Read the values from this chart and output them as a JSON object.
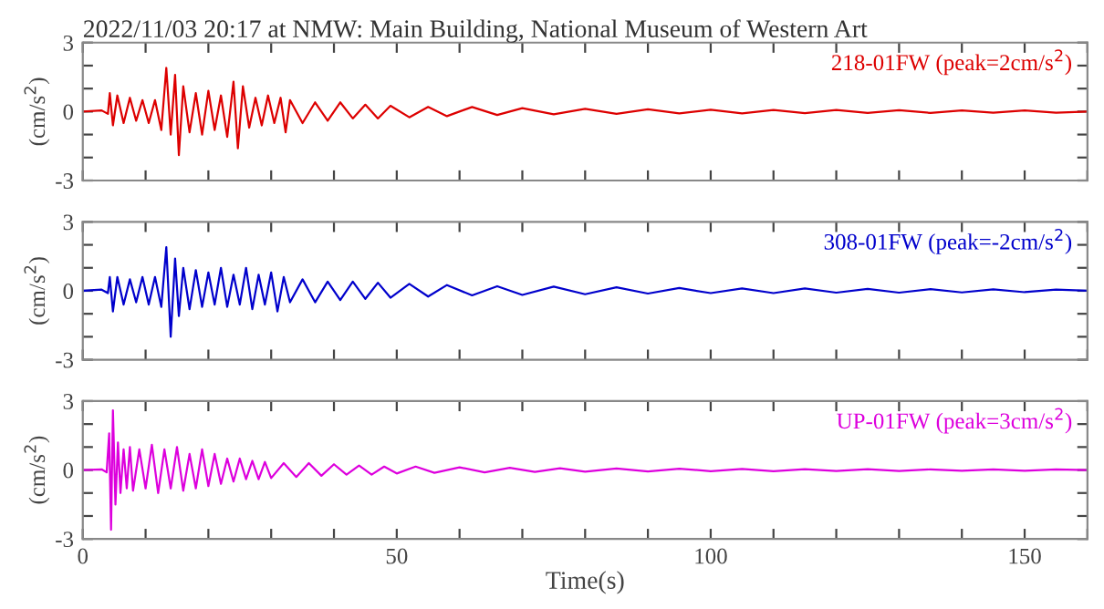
{
  "chart_data": [
    {
      "type": "line",
      "title": "2022/11/03 20:17 at NMW: Main Building, National Museum of Western Art",
      "ylabel": "(cm/s$^{2}$)",
      "tick_labels": "y",
      "legend": false,
      "grid": false,
      "marker": "none",
      "line_style": "solid",
      "xlim": [
        0,
        160
      ],
      "xticks": [
        0,
        {
          "value": 10,
          "label": null
        },
        {
          "value": 20,
          "label": null
        },
        {
          "value": 30,
          "label": null
        },
        {
          "value": 40,
          "label": null
        },
        50,
        {
          "value": 60,
          "label": null
        },
        {
          "value": 70,
          "label": null
        },
        {
          "value": 80,
          "label": null
        },
        {
          "value": 90,
          "label": null
        },
        100,
        {
          "value": 110,
          "label": null
        },
        {
          "value": 120,
          "label": null
        },
        {
          "value": 130,
          "label": null
        },
        {
          "value": 140,
          "label": null
        },
        150,
        {
          "value": 160,
          "label": null
        }
      ],
      "ylim": [
        -3,
        3
      ],
      "yticks": [
        -3,
        {
          "value": -2,
          "label": null
        },
        {
          "value": -1,
          "label": null
        },
        0,
        {
          "value": 1,
          "label": null
        },
        {
          "value": 2,
          "label": null
        },
        3
      ],
      "series": [
        {
          "name": "218-01FW (peak=2cm/s$^{2}$)",
          "color": "#dd0000",
          "x": [
            0,
            3,
            4,
            4.3,
            4.8,
            5.5,
            6.5,
            7.5,
            8.5,
            9.5,
            10.5,
            11.5,
            12.5,
            13.3,
            14,
            14.7,
            15.3,
            16,
            17,
            18,
            19,
            20,
            21,
            22,
            23,
            24,
            24.7,
            25.5,
            26.5,
            27.5,
            28.5,
            29.5,
            30.5,
            31.5,
            32.3,
            33,
            35,
            37,
            39,
            41,
            43,
            45,
            47,
            49,
            52,
            55,
            58,
            62,
            66,
            70,
            75,
            80,
            85,
            90,
            95,
            100,
            105,
            110,
            115,
            120,
            125,
            130,
            135,
            140,
            145,
            150,
            155,
            160
          ],
          "values": [
            0,
            0.05,
            -0.1,
            0.8,
            -0.6,
            0.7,
            -0.5,
            0.6,
            -0.4,
            0.5,
            -0.5,
            0.5,
            -0.8,
            1.9,
            -1.0,
            1.6,
            -1.9,
            1.1,
            -0.9,
            0.8,
            -1.0,
            0.9,
            -0.8,
            0.7,
            -1.1,
            1.3,
            -1.6,
            1.1,
            -0.7,
            0.6,
            -0.6,
            0.7,
            -0.5,
            0.6,
            -0.9,
            0.5,
            -0.5,
            0.4,
            -0.4,
            0.4,
            -0.3,
            0.3,
            -0.3,
            0.25,
            -0.25,
            0.2,
            -0.2,
            0.2,
            -0.15,
            0.15,
            -0.12,
            0.12,
            -0.1,
            0.1,
            -0.08,
            0.08,
            -0.08,
            0.07,
            -0.07,
            0.07,
            -0.06,
            0.06,
            -0.06,
            0.05,
            -0.05,
            0.05,
            -0.05,
            0
          ]
        }
      ]
    },
    {
      "type": "line",
      "ylabel": "(cm/s$^{2}$)",
      "tick_labels": "y",
      "legend": false,
      "grid": false,
      "marker": "none",
      "line_style": "solid",
      "xlim": [
        0,
        160
      ],
      "xticks": [
        0,
        {
          "value": 10,
          "label": null
        },
        {
          "value": 20,
          "label": null
        },
        {
          "value": 30,
          "label": null
        },
        {
          "value": 40,
          "label": null
        },
        50,
        {
          "value": 60,
          "label": null
        },
        {
          "value": 70,
          "label": null
        },
        {
          "value": 80,
          "label": null
        },
        {
          "value": 90,
          "label": null
        },
        100,
        {
          "value": 110,
          "label": null
        },
        {
          "value": 120,
          "label": null
        },
        {
          "value": 130,
          "label": null
        },
        {
          "value": 140,
          "label": null
        },
        150,
        {
          "value": 160,
          "label": null
        }
      ],
      "ylim": [
        -3,
        3
      ],
      "yticks": [
        -3,
        {
          "value": -2,
          "label": null
        },
        {
          "value": -1,
          "label": null
        },
        0,
        {
          "value": 1,
          "label": null
        },
        {
          "value": 2,
          "label": null
        },
        3
      ],
      "series": [
        {
          "name": "308-01FW (peak=-2cm/s$^{2}$)",
          "color": "#0000cc",
          "x": [
            0,
            3,
            4,
            4.3,
            4.8,
            5.5,
            6.5,
            7.5,
            8.5,
            9.5,
            10.5,
            11.5,
            12.5,
            13.3,
            14,
            14.7,
            15.3,
            16,
            17,
            18,
            19,
            20,
            21,
            22,
            23,
            24,
            25,
            26,
            27,
            28,
            29,
            30,
            31,
            32,
            33,
            35,
            37,
            39,
            41,
            43,
            45,
            47,
            49,
            52,
            55,
            58,
            62,
            66,
            70,
            75,
            80,
            85,
            90,
            95,
            100,
            105,
            110,
            115,
            120,
            125,
            130,
            135,
            140,
            145,
            150,
            155,
            160
          ],
          "values": [
            0,
            0.05,
            -0.1,
            0.6,
            -0.9,
            0.6,
            -0.6,
            0.5,
            -0.5,
            0.6,
            -0.6,
            0.6,
            -0.7,
            1.9,
            -2.0,
            1.4,
            -1.1,
            1.0,
            -0.8,
            0.9,
            -0.7,
            0.8,
            -0.6,
            1.0,
            -0.7,
            0.7,
            -0.6,
            1.0,
            -0.8,
            0.7,
            -0.6,
            0.8,
            -0.9,
            0.6,
            -0.5,
            0.5,
            -0.5,
            0.4,
            -0.4,
            0.4,
            -0.35,
            0.35,
            -0.3,
            0.3,
            -0.25,
            0.25,
            -0.2,
            0.2,
            -0.18,
            0.18,
            -0.15,
            0.15,
            -0.12,
            0.12,
            -0.1,
            0.1,
            -0.1,
            0.1,
            -0.08,
            0.08,
            -0.08,
            0.07,
            -0.07,
            0.06,
            -0.06,
            0.05,
            0
          ]
        }
      ]
    },
    {
      "type": "line",
      "xlabel": "Time(s)",
      "ylabel": "(cm/s$^{2}$)",
      "legend": false,
      "grid": false,
      "marker": "none",
      "line_style": "solid",
      "xlim": [
        0,
        160
      ],
      "xticks": [
        0,
        {
          "value": 10,
          "label": null
        },
        {
          "value": 20,
          "label": null
        },
        {
          "value": 30,
          "label": null
        },
        {
          "value": 40,
          "label": null
        },
        50,
        {
          "value": 60,
          "label": null
        },
        {
          "value": 70,
          "label": null
        },
        {
          "value": 80,
          "label": null
        },
        {
          "value": 90,
          "label": null
        },
        100,
        {
          "value": 110,
          "label": null
        },
        {
          "value": 120,
          "label": null
        },
        {
          "value": 130,
          "label": null
        },
        {
          "value": 140,
          "label": null
        },
        150,
        {
          "value": 160,
          "label": null
        }
      ],
      "ylim": [
        -3,
        3
      ],
      "yticks": [
        -3,
        {
          "value": -2,
          "label": null
        },
        {
          "value": -1,
          "label": null
        },
        0,
        {
          "value": 1,
          "label": null
        },
        {
          "value": 2,
          "label": null
        },
        3
      ],
      "series": [
        {
          "name": "UP-01FW (peak=3cm/s$^{2}$)",
          "color": "#dd00dd",
          "x": [
            0,
            3,
            3.8,
            4.2,
            4.5,
            4.8,
            5.2,
            5.6,
            6,
            6.5,
            7,
            7.5,
            8,
            9,
            10,
            11,
            12,
            13,
            14,
            15,
            16,
            17,
            18,
            19,
            20,
            21,
            22,
            23,
            24,
            25,
            26,
            27,
            28,
            29,
            30,
            32,
            34,
            36,
            38,
            40,
            42,
            44,
            46,
            48,
            50,
            53,
            56,
            60,
            64,
            68,
            72,
            76,
            80,
            85,
            90,
            95,
            100,
            105,
            110,
            115,
            120,
            125,
            130,
            135,
            140,
            145,
            150,
            155,
            160
          ],
          "values": [
            0,
            0.03,
            -0.1,
            1.6,
            -2.6,
            2.6,
            -1.5,
            1.2,
            -1.0,
            0.9,
            -0.8,
            1.0,
            -0.9,
            0.9,
            -0.8,
            1.1,
            -1.0,
            0.9,
            -0.8,
            1.0,
            -0.9,
            0.7,
            -0.8,
            0.9,
            -0.7,
            0.7,
            -0.6,
            0.5,
            -0.5,
            0.5,
            -0.4,
            0.4,
            -0.4,
            0.35,
            -0.35,
            0.3,
            -0.3,
            0.3,
            -0.25,
            0.25,
            -0.2,
            0.2,
            -0.2,
            0.15,
            -0.15,
            0.15,
            -0.12,
            0.12,
            -0.1,
            0.1,
            -0.08,
            0.08,
            -0.07,
            0.07,
            -0.06,
            0.06,
            -0.05,
            0.05,
            -0.05,
            0.04,
            -0.04,
            0.04,
            -0.04,
            0.03,
            -0.03,
            0.03,
            -0.03,
            0.03,
            0
          ]
        }
      ]
    }
  ]
}
